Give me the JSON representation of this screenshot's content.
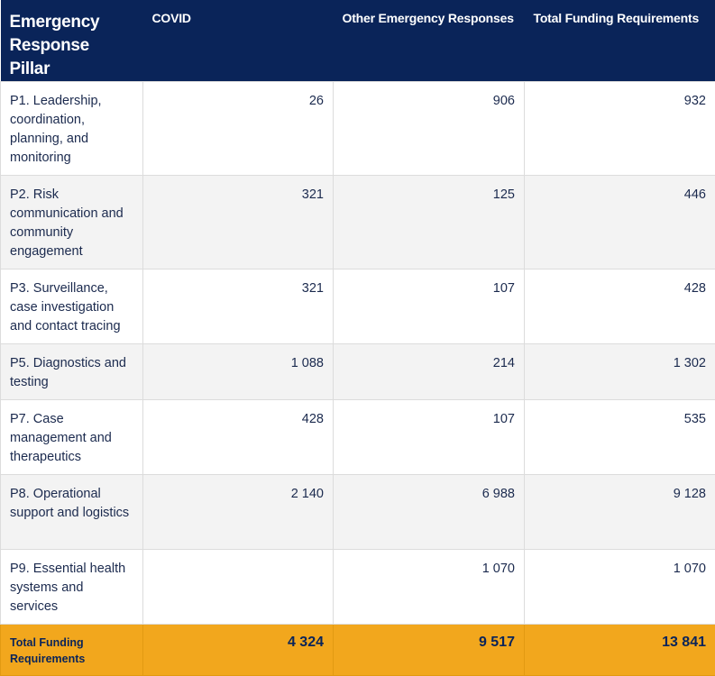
{
  "table": {
    "headers": [
      "Emergency Response Pillar",
      "COVID",
      "Other Emergency Responses",
      "Total Funding Requirements"
    ],
    "rows": [
      {
        "pillar": "P1. Leadership, coordination, planning, and monitoring",
        "covid": "26",
        "other": "906",
        "total": "932"
      },
      {
        "pillar": "P2. Risk communication and community engagement",
        "covid": "321",
        "other": "125",
        "total": "446"
      },
      {
        "pillar": "P3. Surveillance, case investigation and contact tracing",
        "covid": "321",
        "other": "107",
        "total": "428"
      },
      {
        "pillar": "P5. Diagnostics and testing",
        "covid": "1 088",
        "other": "214",
        "total": "1 302"
      },
      {
        "pillar": "P7. Case management and therapeutics",
        "covid": "428",
        "other": "107",
        "total": "535"
      },
      {
        "pillar": "P8. Operational support and logistics",
        "covid": "2 140",
        "other": "6 988",
        "total": "9 128"
      },
      {
        "pillar": "P9. Essential health systems and services",
        "covid": "",
        "other": "1 070",
        "total": "1 070"
      }
    ],
    "footer": {
      "label": "Total Funding Requirements",
      "covid": "4 324",
      "other": "9 517",
      "total": "13 841"
    }
  },
  "colors": {
    "header_bg": "#0a2459",
    "footer_bg": "#f2a71d",
    "alt_row_bg": "#f3f3f3"
  }
}
